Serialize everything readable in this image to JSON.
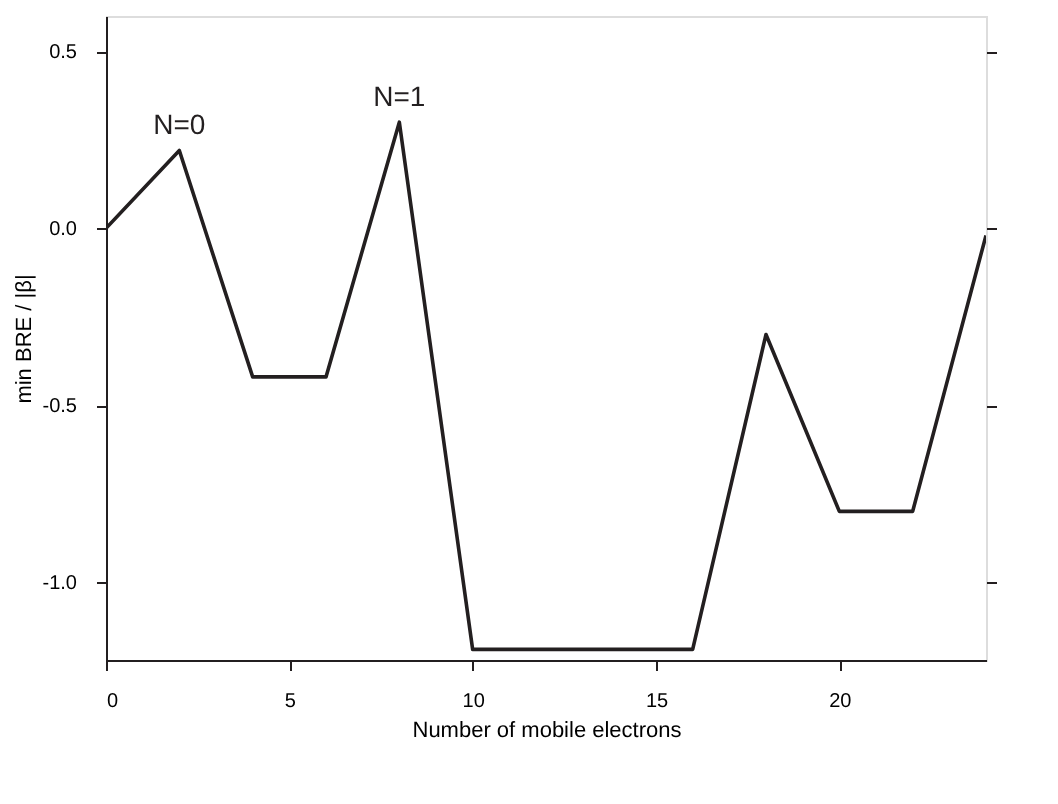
{
  "chart_data": {
    "type": "line",
    "xlabel": "Number of mobile electrons",
    "ylabel": "min BRE / |β|",
    "x": [
      0,
      2,
      4,
      6,
      8,
      10,
      16,
      18,
      20,
      22,
      24
    ],
    "series": [
      {
        "color": "#231f20",
        "values": [
          0.0,
          0.22,
          -0.42,
          -0.42,
          0.3,
          -1.19,
          -1.19,
          -0.3,
          -0.8,
          -0.8,
          -0.02
        ]
      }
    ],
    "xlim": [
      0,
      24
    ],
    "xticks": [
      0,
      5,
      10,
      15,
      20
    ],
    "ylim": [
      -1.22,
      0.6
    ],
    "yticks": [
      {
        "value": -1.0,
        "label": "-1.0"
      },
      {
        "value": -0.5,
        "label": "-0.5"
      },
      {
        "value": 0,
        "label": "0.0"
      },
      {
        "value": 0.5,
        "label": "0.5"
      }
    ],
    "annotations": [
      {
        "text": "N=0",
        "x": 2,
        "y": 0.22
      },
      {
        "text": "N=1",
        "x": 8,
        "y": 0.3
      }
    ],
    "grid": false,
    "legend": false,
    "marker": "none",
    "line_style": "solid"
  }
}
